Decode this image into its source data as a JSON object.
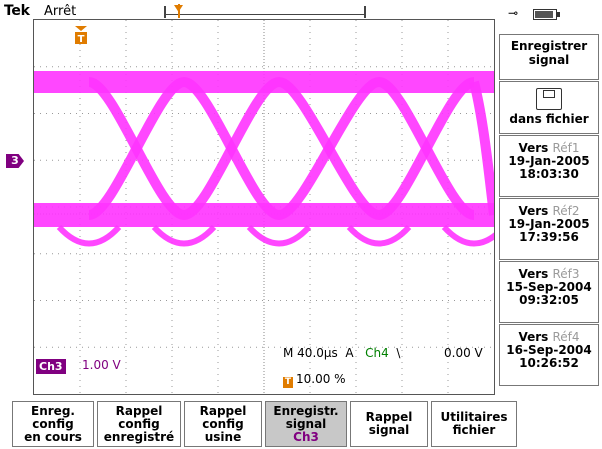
{
  "status": {
    "brand": "Tek",
    "state": "Arrêt"
  },
  "colors": {
    "waveform": "#ff33ff",
    "channel3": "#800080",
    "channel4": "#008000",
    "trigger": "#e07c00",
    "menu_selected_bg": "#c8c8c8"
  },
  "icons": {
    "trigger_marker": "trigger-t-icon",
    "channel_marker": "ch3-ground-marker-icon",
    "power": "ac-plug-icon",
    "battery": "battery-icon",
    "floppy": "floppy-disk-icon",
    "slope": "rising-slope-icon"
  },
  "screen": {
    "channel_marker_label": "3",
    "trigger_marker_label": "T",
    "channel_label": "Ch3",
    "channel_scale": "1.00 V",
    "timebase": "M 40.0µs",
    "trigger_mode": "A",
    "trigger_source": "Ch4",
    "trigger_slope_symbol": "\\",
    "trigger_level": "0.00 V",
    "trigger_position": "10.00 %"
  },
  "side_menu": {
    "title_line1": "Enregistrer",
    "title_line2": "signal",
    "file_label": "dans fichier",
    "refs": [
      {
        "prefix": "Vers",
        "name": "Réf1",
        "date": "19-Jan-2005",
        "time": "18:03:30"
      },
      {
        "prefix": "Vers",
        "name": "Réf2",
        "date": "19-Jan-2005",
        "time": "17:39:56"
      },
      {
        "prefix": "Vers",
        "name": "Réf3",
        "date": "15-Sep-2004",
        "time": "09:32:05"
      },
      {
        "prefix": "Vers",
        "name": "Réf4",
        "date": "16-Sep-2004",
        "time": "10:26:52"
      }
    ]
  },
  "bottom_menu": [
    {
      "l1": "Enreg.",
      "l2": "config",
      "l3": "en cours"
    },
    {
      "l1": "Rappel",
      "l2": "config",
      "l3": "enregistré"
    },
    {
      "l1": "Rappel",
      "l2": "config",
      "l3": "usine"
    },
    {
      "l1": "Enregistr.",
      "l2": "signal",
      "l3": "Ch3"
    },
    {
      "l1": "Rappel",
      "l2": "signal",
      "l3": ""
    },
    {
      "l1": "Utilitaires",
      "l2": "fichier",
      "l3": ""
    }
  ]
}
